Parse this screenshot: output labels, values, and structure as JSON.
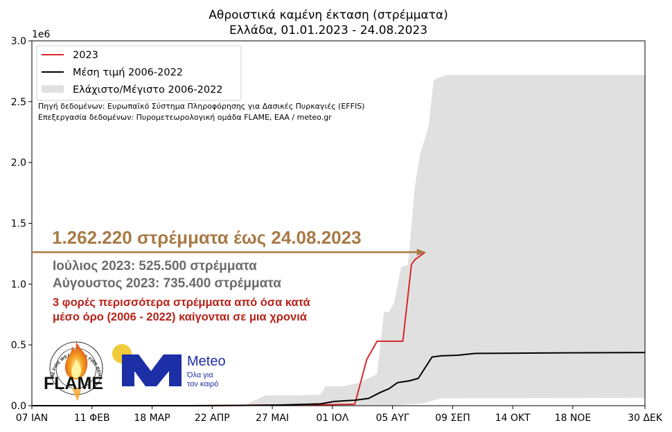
{
  "chart_data": {
    "type": "area",
    "title": "Αθροιστικά καμένη έκταση (στρέμματα)",
    "subtitle": "Ελλάδα, 01.01.2023 - 24.08.2023",
    "y_multiplier": "1e6",
    "xlim": [
      7,
      364
    ],
    "ylim": [
      0,
      3.0
    ],
    "x_ticks": [
      {
        "day": 7,
        "label": "07 ΙΑΝ"
      },
      {
        "day": 42,
        "label": "11 ΦΕΒ"
      },
      {
        "day": 77,
        "label": "18 ΜΑΡ"
      },
      {
        "day": 112,
        "label": "22 ΑΠΡ"
      },
      {
        "day": 147,
        "label": "27 ΜΑΙ"
      },
      {
        "day": 182,
        "label": "01 ΙΟΛ"
      },
      {
        "day": 217,
        "label": "05 ΑΥΓ"
      },
      {
        "day": 252,
        "label": "09 ΣΕΠ"
      },
      {
        "day": 287,
        "label": "14 ΟΚΤ"
      },
      {
        "day": 322,
        "label": "18 ΝΟΕ"
      },
      {
        "day": 364,
        "label": "30 ΔΕΚ"
      }
    ],
    "y_ticks": [
      {
        "v": 0.0,
        "label": "0.0"
      },
      {
        "v": 0.5,
        "label": "0.5"
      },
      {
        "v": 1.0,
        "label": "1.0"
      },
      {
        "v": 1.5,
        "label": "1.5"
      },
      {
        "v": 2.0,
        "label": "2.0"
      },
      {
        "v": 2.5,
        "label": "2.5"
      },
      {
        "v": 3.0,
        "label": "3.0"
      }
    ],
    "grid": false,
    "legend_position": "top-left",
    "series": [
      {
        "name": "2023",
        "kind": "line",
        "color": "#d62728",
        "points": [
          [
            7,
            0
          ],
          [
            100,
            0
          ],
          [
            140,
            0.004
          ],
          [
            175,
            0.008
          ],
          [
            195,
            0.012
          ],
          [
            202,
            0.38
          ],
          [
            208,
            0.53
          ],
          [
            222,
            0.53
          ],
          [
            223,
            0.53
          ],
          [
            228,
            1.16
          ],
          [
            229,
            1.18
          ],
          [
            230,
            1.2
          ],
          [
            236,
            1.262
          ]
        ]
      },
      {
        "name": "Μέση τιμή 2006-2022",
        "kind": "line",
        "color": "#000000",
        "points": [
          [
            7,
            0
          ],
          [
            100,
            0
          ],
          [
            130,
            0.002
          ],
          [
            150,
            0.005
          ],
          [
            175,
            0.015
          ],
          [
            183,
            0.035
          ],
          [
            195,
            0.045
          ],
          [
            203,
            0.06
          ],
          [
            210,
            0.11
          ],
          [
            215,
            0.14
          ],
          [
            220,
            0.19
          ],
          [
            227,
            0.205
          ],
          [
            232,
            0.225
          ],
          [
            240,
            0.4
          ],
          [
            245,
            0.41
          ],
          [
            255,
            0.415
          ],
          [
            265,
            0.43
          ],
          [
            290,
            0.432
          ],
          [
            320,
            0.435
          ],
          [
            364,
            0.437
          ]
        ]
      },
      {
        "name": "Ελάχιστο/Μέγιστο 2006-2022",
        "kind": "band",
        "color": "#e0e0e0",
        "upper": [
          [
            7,
            0
          ],
          [
            130,
            0
          ],
          [
            138,
            0.05
          ],
          [
            143,
            0.085
          ],
          [
            160,
            0.085
          ],
          [
            175,
            0.09
          ],
          [
            178,
            0.16
          ],
          [
            188,
            0.16
          ],
          [
            198,
            0.19
          ],
          [
            202,
            0.22
          ],
          [
            208,
            0.26
          ],
          [
            212,
            0.77
          ],
          [
            215,
            0.77
          ],
          [
            218,
            0.85
          ],
          [
            222,
            1.14
          ],
          [
            226,
            1.16
          ],
          [
            230,
            1.8
          ],
          [
            233,
            2.07
          ],
          [
            236,
            2.2
          ],
          [
            238,
            2.3
          ],
          [
            241,
            2.68
          ],
          [
            248,
            2.72
          ],
          [
            364,
            2.72
          ]
        ],
        "lower": [
          [
            7,
            0
          ],
          [
            215,
            0
          ],
          [
            235,
            0.02
          ],
          [
            245,
            0.06
          ],
          [
            364,
            0.065
          ]
        ]
      }
    ],
    "source_lines": [
      "Πηγή δεδομένων: Ευρωπαϊκό Σύστημα Πληροφόρησης για Δασικές Πυρκαγιές (EFFIS)",
      "Επεξεργασία δεδομένων: Πυρομετεωρολογική ομάδα FLAME, ΕΑΑ / meteo.gr"
    ],
    "annotations": {
      "total": "1.262.220 στρέμματα έως 24.08.2023",
      "total_value": 1.262,
      "total_arrow_end_day": 236,
      "july": "Ιούλιος 2023: 525.500 στρέμματα",
      "august": "Αύγουστος 2023: 735.400 στρέμματα",
      "note_line1": "3 φορές περισσότερα στρέμματα από όσα κατά",
      "note_line2": "μέσο όρο (2006 - 2022) καίγονται σε μια χρονιά"
    }
  },
  "logos": {
    "flame": {
      "text": "FLAME",
      "ring": "EXTREME FIRE WEATHER & FIRE BEHAVIOUR"
    },
    "meteo": {
      "name": "Meteo",
      "tagline_1": "Όλα για",
      "tagline_2": "τον καιρό",
      "brand_color": "#1c2fa6",
      "sun_color": "#f0cc3a"
    }
  }
}
